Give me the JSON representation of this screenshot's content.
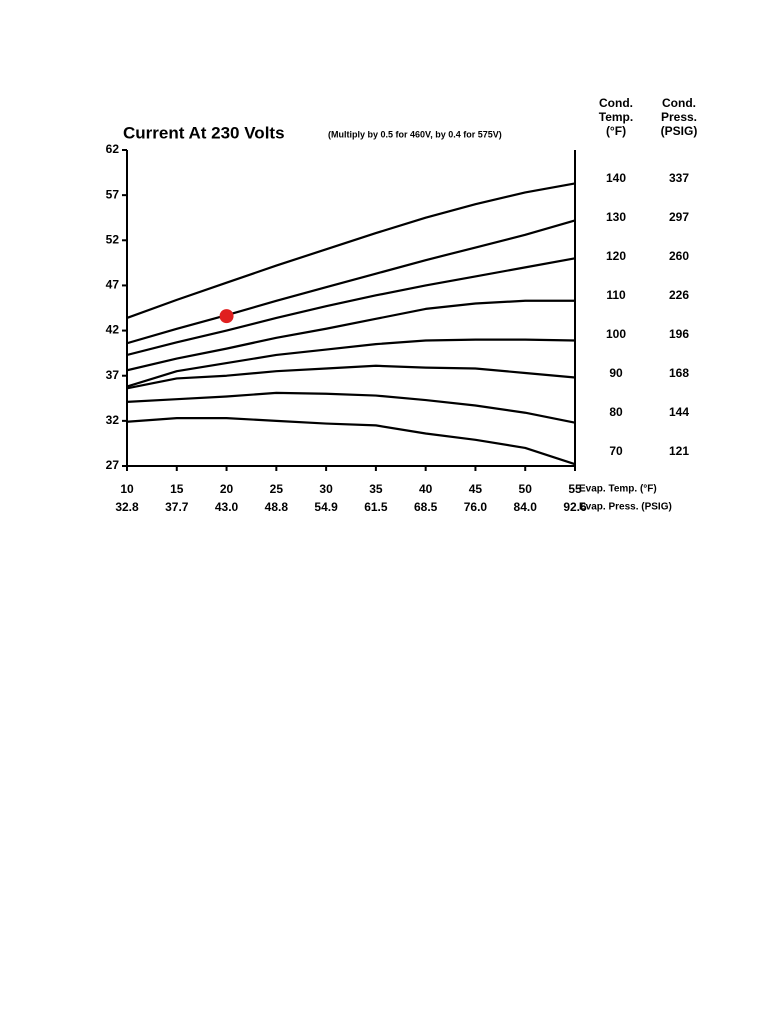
{
  "chart_data": {
    "type": "line",
    "title": "Current At 230 Volts",
    "subtitle": "(Multiply by 0.5 for 460V, by 0.4 for 575V)",
    "x": [
      10,
      15,
      20,
      25,
      30,
      35,
      40,
      45,
      50,
      55
    ],
    "xlim": [
      10,
      55
    ],
    "xticks": [
      10,
      15,
      20,
      25,
      30,
      35,
      40,
      45,
      50,
      55
    ],
    "xlabel": "Evap. Temp. (°F)",
    "x2_labels": [
      "32.8",
      "37.7",
      "43.0",
      "48.8",
      "54.9",
      "61.5",
      "68.5",
      "76.0",
      "84.0",
      "92.6"
    ],
    "x2label": "Evap. Press. (PSIG)",
    "ylim": [
      27,
      62
    ],
    "yticks": [
      27,
      32,
      37,
      42,
      47,
      52,
      57,
      62
    ],
    "cond_temp_header": [
      "Cond.",
      "Temp.",
      "(°F)"
    ],
    "cond_press_header": [
      "Cond.",
      "Press.",
      "(PSIG)"
    ],
    "series": [
      {
        "cond_temp": 140,
        "cond_press": 337,
        "color": "#000000",
        "values": [
          43.4,
          45.4,
          47.3,
          49.2,
          51.0,
          52.8,
          54.5,
          56.0,
          57.3,
          58.3
        ]
      },
      {
        "cond_temp": 130,
        "cond_press": 297,
        "color": "#000000",
        "values": [
          40.6,
          42.2,
          43.7,
          45.3,
          46.8,
          48.3,
          49.8,
          51.2,
          52.6,
          54.2
        ]
      },
      {
        "cond_temp": 120,
        "cond_press": 260,
        "color": "#000000",
        "values": [
          39.3,
          40.7,
          42.0,
          43.4,
          44.7,
          45.9,
          47.0,
          48.0,
          49.0,
          50.0
        ]
      },
      {
        "cond_temp": 110,
        "cond_press": 226,
        "color": "#000000",
        "values": [
          37.6,
          38.9,
          40.0,
          41.2,
          42.2,
          43.3,
          44.4,
          45.0,
          45.3,
          45.3
        ]
      },
      {
        "cond_temp": 100,
        "cond_press": 196,
        "color": "#000000",
        "values": [
          35.8,
          37.5,
          38.4,
          39.3,
          39.9,
          40.5,
          40.9,
          41.0,
          41.0,
          40.9
        ]
      },
      {
        "cond_temp": 90,
        "cond_press": 168,
        "color": "#000000",
        "values": [
          35.6,
          36.7,
          37.0,
          37.5,
          37.8,
          38.1,
          37.9,
          37.8,
          37.3,
          36.8
        ]
      },
      {
        "cond_temp": 80,
        "cond_press": 144,
        "color": "#000000",
        "values": [
          34.1,
          34.4,
          34.7,
          35.1,
          35.0,
          34.8,
          34.3,
          33.7,
          32.9,
          31.8
        ]
      },
      {
        "cond_temp": 70,
        "cond_press": 121,
        "color": "#000000",
        "values": [
          31.9,
          32.3,
          32.3,
          32.0,
          31.7,
          31.5,
          30.6,
          29.9,
          29.0,
          27.2
        ]
      }
    ],
    "marker": {
      "x": 20,
      "y": 43.6,
      "color": "#e02020"
    }
  }
}
